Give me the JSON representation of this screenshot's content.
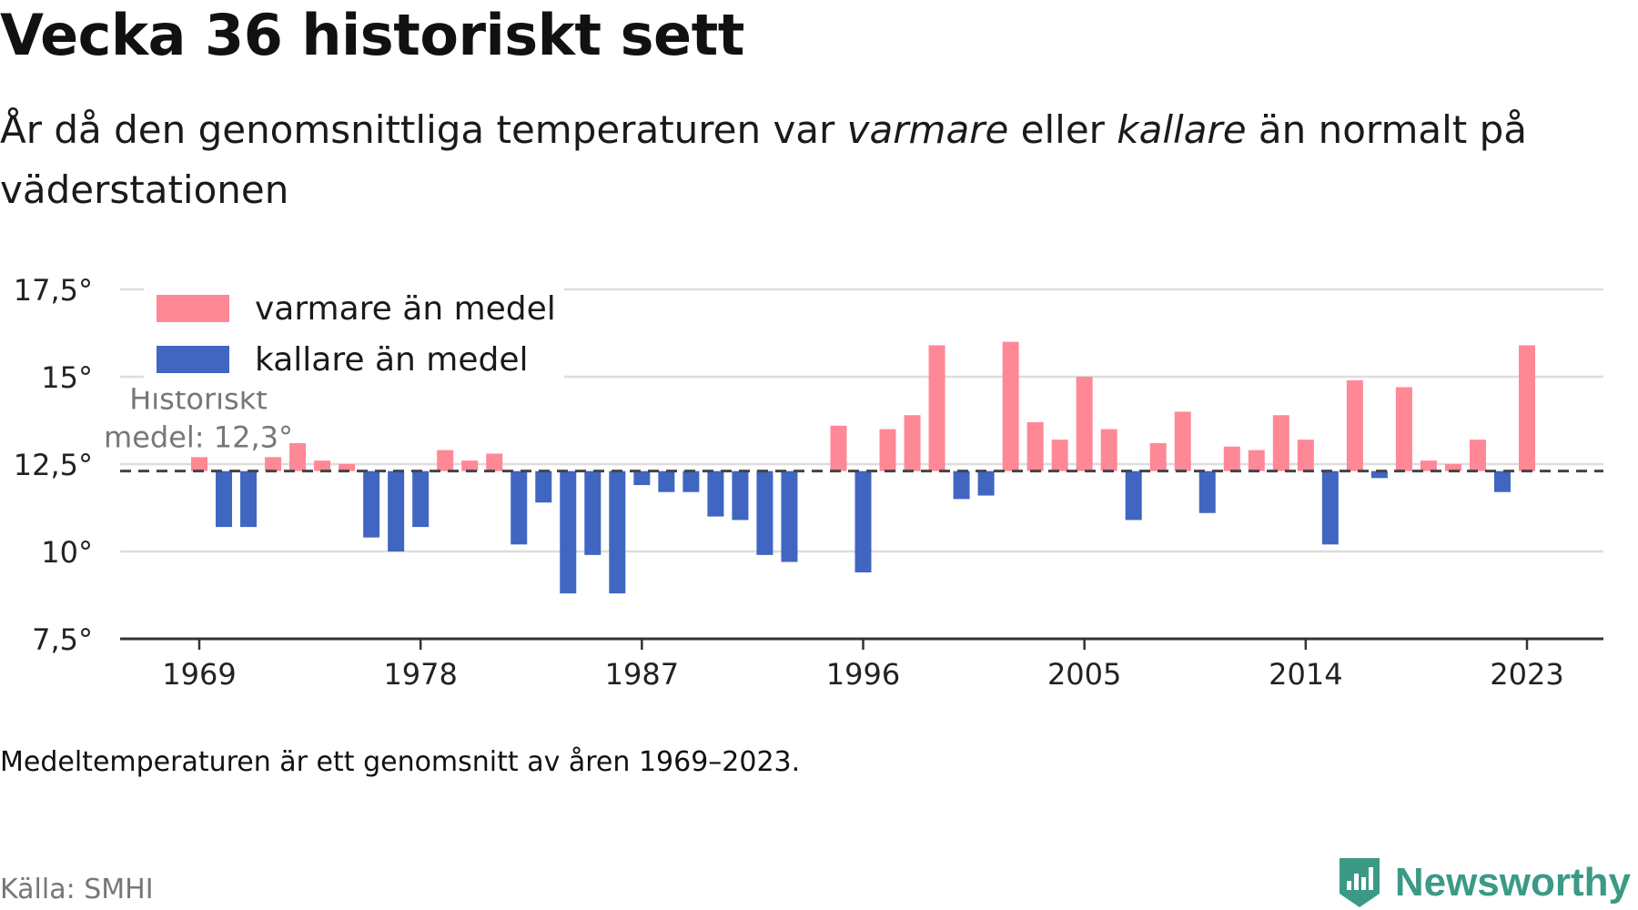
{
  "header": {
    "title": "Vecka 36 historiskt sett",
    "subtitle_part1": "År då den genomsnittliga temperaturen var ",
    "subtitle_warm_word": "varmare",
    "subtitle_part2": " eller ",
    "subtitle_cold_word": "kallare",
    "subtitle_part3": " än normalt på väderstationen"
  },
  "footer": {
    "note": "Medeltemperaturen är ett genomsnitt av åren 1969–2023.",
    "source": "Källa: SMHI",
    "brand": "Newsworthy"
  },
  "colors": {
    "warm": "#ff8896",
    "cold": "#4066c2",
    "grid": "#dddddd",
    "axis": "#333333",
    "mean_line": "#444444",
    "brand": "#3b9a86"
  },
  "chart_data": {
    "type": "bar",
    "x": [
      1969,
      1970,
      1971,
      1972,
      1973,
      1974,
      1975,
      1976,
      1977,
      1978,
      1979,
      1980,
      1981,
      1982,
      1983,
      1984,
      1985,
      1986,
      1987,
      1988,
      1989,
      1990,
      1991,
      1992,
      1993,
      1994,
      1995,
      1996,
      1997,
      1998,
      1999,
      2000,
      2001,
      2002,
      2003,
      2004,
      2005,
      2006,
      2007,
      2008,
      2009,
      2010,
      2011,
      2012,
      2013,
      2014,
      2015,
      2016,
      2017,
      2018,
      2019,
      2020,
      2021,
      2022,
      2023
    ],
    "values": [
      12.7,
      10.7,
      10.7,
      12.7,
      13.1,
      12.6,
      12.5,
      10.4,
      10.0,
      10.7,
      12.9,
      12.6,
      12.8,
      10.2,
      11.4,
      8.8,
      9.9,
      8.8,
      11.9,
      11.7,
      11.7,
      11.0,
      10.9,
      9.9,
      9.7,
      null,
      13.6,
      9.4,
      13.5,
      13.9,
      15.9,
      11.5,
      11.6,
      16.0,
      13.7,
      13.2,
      15.0,
      13.5,
      10.9,
      13.1,
      14.0,
      11.1,
      13.0,
      12.9,
      13.9,
      13.2,
      10.2,
      14.9,
      12.1,
      14.7,
      12.6,
      12.5,
      13.2,
      11.7,
      15.9
    ],
    "baseline": 12.3,
    "baseline_label_line1": "Historiskt",
    "baseline_label_line2": "medel: 12,3°",
    "ylim": [
      7.5,
      17.5
    ],
    "y_ticks": [
      7.5,
      10,
      12.5,
      15,
      17.5
    ],
    "y_tick_labels": [
      "7,5°",
      "10°",
      "12,5°",
      "15°",
      "17,5°"
    ],
    "x_ticks": [
      1969,
      1978,
      1987,
      1996,
      2005,
      2014,
      2023
    ],
    "x_tick_labels": [
      "1969",
      "1978",
      "1987",
      "1996",
      "2005",
      "2014",
      "2023"
    ],
    "grid": true,
    "legend": {
      "placement": "top-left",
      "entries": [
        {
          "label": "varmare än medel",
          "color": "#ff8896"
        },
        {
          "label": "kallare än medel",
          "color": "#4066c2"
        }
      ]
    }
  }
}
